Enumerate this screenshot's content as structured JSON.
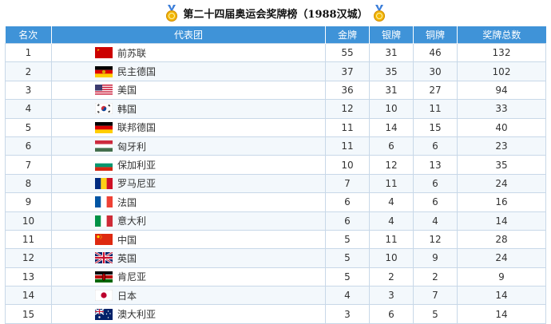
{
  "title": "第二十四届奥运会奖牌榜（1988汉城）",
  "columns": [
    "名次",
    "代表团",
    "金牌",
    "银牌",
    "铜牌",
    "奖牌总数"
  ],
  "rows": [
    {
      "rank": "1",
      "team": "前苏联",
      "flag": "ussr-flag-icon",
      "gold": "55",
      "silver": "31",
      "bronze": "46",
      "total": "132"
    },
    {
      "rank": "2",
      "team": "民主德国",
      "flag": "east-germany-flag-icon",
      "gold": "37",
      "silver": "35",
      "bronze": "30",
      "total": "102"
    },
    {
      "rank": "3",
      "team": "美国",
      "flag": "usa-flag-icon",
      "gold": "36",
      "silver": "31",
      "bronze": "27",
      "total": "94"
    },
    {
      "rank": "4",
      "team": "韩国",
      "flag": "south-korea-flag-icon",
      "gold": "12",
      "silver": "10",
      "bronze": "11",
      "total": "33"
    },
    {
      "rank": "5",
      "team": "联邦德国",
      "flag": "west-germany-flag-icon",
      "gold": "11",
      "silver": "14",
      "bronze": "15",
      "total": "40"
    },
    {
      "rank": "6",
      "team": "匈牙利",
      "flag": "hungary-flag-icon",
      "gold": "11",
      "silver": "6",
      "bronze": "6",
      "total": "23"
    },
    {
      "rank": "7",
      "team": "保加利亚",
      "flag": "bulgaria-flag-icon",
      "gold": "10",
      "silver": "12",
      "bronze": "13",
      "total": "35"
    },
    {
      "rank": "8",
      "team": "罗马尼亚",
      "flag": "romania-flag-icon",
      "gold": "7",
      "silver": "11",
      "bronze": "6",
      "total": "24"
    },
    {
      "rank": "9",
      "team": "法国",
      "flag": "france-flag-icon",
      "gold": "6",
      "silver": "4",
      "bronze": "6",
      "total": "16"
    },
    {
      "rank": "10",
      "team": "意大利",
      "flag": "italy-flag-icon",
      "gold": "6",
      "silver": "4",
      "bronze": "4",
      "total": "14"
    },
    {
      "rank": "11",
      "team": "中国",
      "flag": "china-flag-icon",
      "gold": "5",
      "silver": "11",
      "bronze": "12",
      "total": "28"
    },
    {
      "rank": "12",
      "team": "英国",
      "flag": "uk-flag-icon",
      "gold": "5",
      "silver": "10",
      "bronze": "9",
      "total": "24"
    },
    {
      "rank": "13",
      "team": "肯尼亚",
      "flag": "kenya-flag-icon",
      "gold": "5",
      "silver": "2",
      "bronze": "2",
      "total": "9"
    },
    {
      "rank": "14",
      "team": "日本",
      "flag": "japan-flag-icon",
      "gold": "4",
      "silver": "3",
      "bronze": "7",
      "total": "14"
    },
    {
      "rank": "15",
      "team": "澳大利亚",
      "flag": "australia-flag-icon",
      "gold": "3",
      "silver": "6",
      "bronze": "5",
      "total": "14"
    }
  ]
}
